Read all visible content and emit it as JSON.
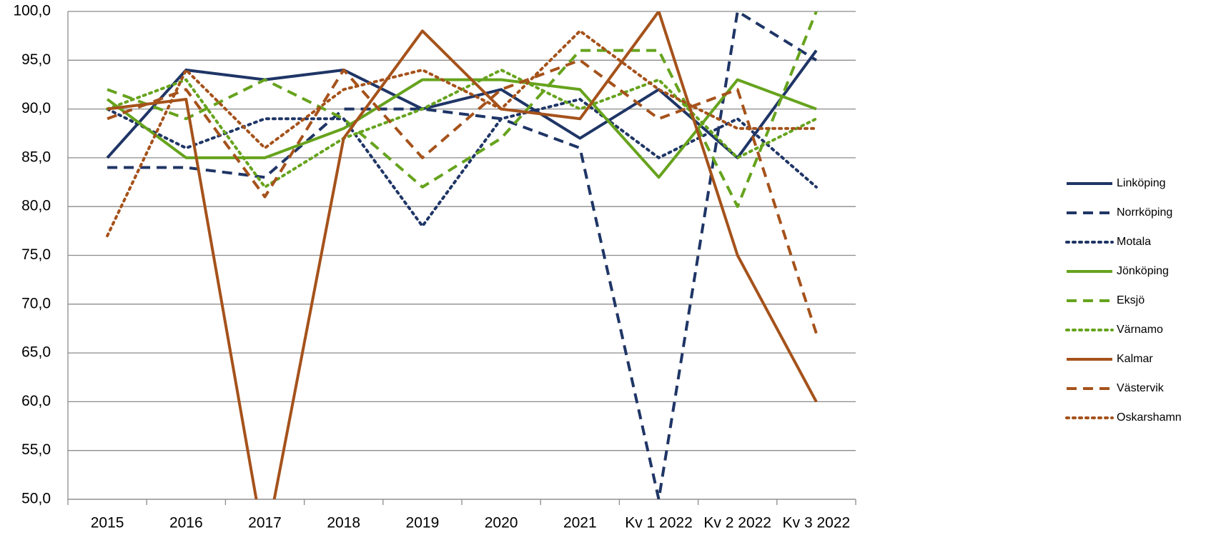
{
  "chart_data": {
    "type": "line",
    "categories": [
      "2015",
      "2016",
      "2017",
      "2018",
      "2019",
      "2020",
      "2021",
      "Kv 1 2022",
      "Kv 2 2022",
      "Kv 3 2022"
    ],
    "ylim": [
      50,
      100
    ],
    "yticks": [
      {
        "value": 50,
        "label": "50,0"
      },
      {
        "value": 55,
        "label": "55,0"
      },
      {
        "value": 60,
        "label": "60,0"
      },
      {
        "value": 65,
        "label": "65,0"
      },
      {
        "value": 70,
        "label": "70,0"
      },
      {
        "value": 75,
        "label": "75,0"
      },
      {
        "value": 80,
        "label": "80,0"
      },
      {
        "value": 85,
        "label": "85,0"
      },
      {
        "value": 90,
        "label": "90,0"
      },
      {
        "value": 95,
        "label": "95,0"
      },
      {
        "value": 100,
        "label": "100,0"
      }
    ],
    "grid": true,
    "legend": "right",
    "series": [
      {
        "name": "Linköping",
        "color": "#1f3566",
        "dash": "solid",
        "values": [
          85,
          94,
          93,
          94,
          90,
          92,
          87,
          92,
          85,
          96
        ]
      },
      {
        "name": "Norrköping",
        "color": "#1f3566",
        "dash": "dashed",
        "values": [
          84,
          84,
          83,
          90,
          90,
          89,
          86,
          50,
          100,
          95
        ]
      },
      {
        "name": "Motala",
        "color": "#1f3566",
        "dash": "dotted",
        "values": [
          90,
          86,
          89,
          89,
          78,
          89,
          91,
          85,
          89,
          82
        ]
      },
      {
        "name": "Jönköping",
        "color": "#66a31d",
        "dash": "solid",
        "values": [
          91,
          85,
          85,
          88,
          93,
          93,
          92,
          83,
          93,
          90
        ]
      },
      {
        "name": "Eksjö",
        "color": "#66a31d",
        "dash": "dashed",
        "values": [
          92,
          89,
          93,
          89,
          82,
          87,
          96,
          96,
          80,
          100
        ]
      },
      {
        "name": "Värnamo",
        "color": "#66a31d",
        "dash": "dotted",
        "values": [
          90,
          93,
          82,
          87,
          90,
          94,
          90,
          93,
          85,
          89
        ]
      },
      {
        "name": "Kalmar",
        "color": "#a5521b",
        "dash": "solid",
        "values": [
          90,
          91,
          45,
          87,
          98,
          90,
          89,
          100,
          75,
          60
        ]
      },
      {
        "name": "Västervik",
        "color": "#a5521b",
        "dash": "dashed",
        "values": [
          89,
          92,
          81,
          94,
          85,
          92,
          95,
          89,
          92,
          67
        ]
      },
      {
        "name": "Oskarshamn",
        "color": "#a5521b",
        "dash": "dotted",
        "values": [
          77,
          94,
          86,
          92,
          94,
          90,
          98,
          92,
          88,
          88
        ]
      }
    ]
  }
}
